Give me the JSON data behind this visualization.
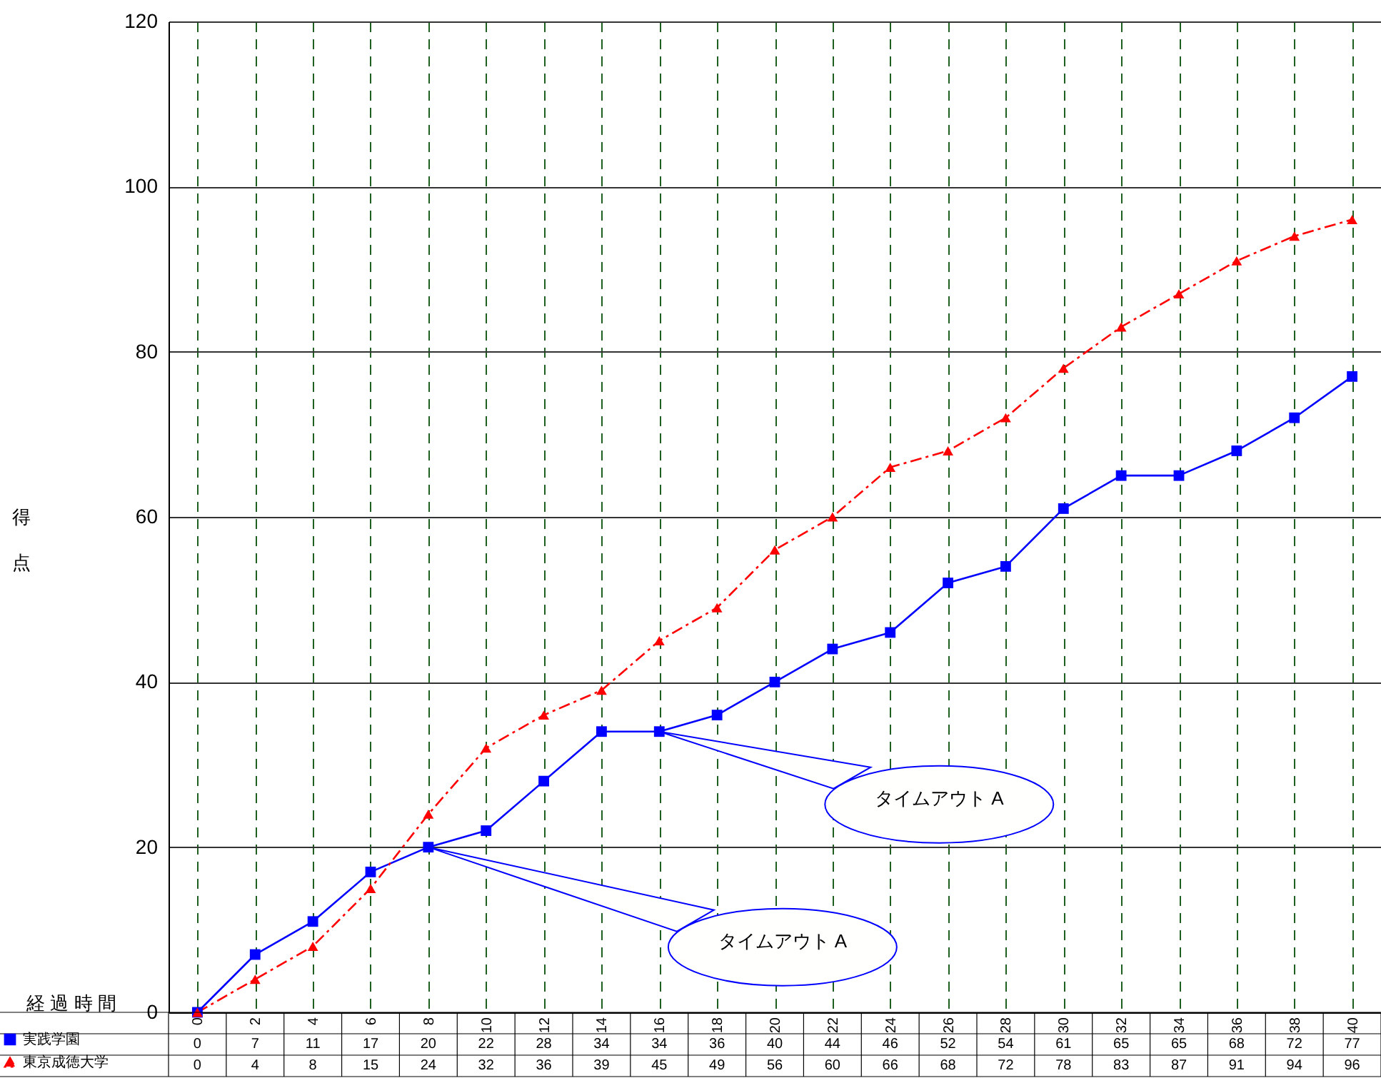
{
  "chart_data": {
    "type": "line",
    "xlabel": "経過時間",
    "ylabel": "得点",
    "categories": [
      "0",
      "2",
      "4",
      "6",
      "8",
      "10",
      "12",
      "14",
      "16",
      "18",
      "20",
      "22",
      "24",
      "26",
      "28",
      "30",
      "32",
      "34",
      "36",
      "38",
      "40"
    ],
    "series": [
      {
        "name": "実践学園",
        "color": "#0000ff",
        "marker": "square",
        "line_style": "solid",
        "values": [
          0,
          7,
          11,
          17,
          20,
          22,
          28,
          34,
          34,
          36,
          40,
          44,
          46,
          52,
          54,
          61,
          65,
          65,
          68,
          72,
          77
        ]
      },
      {
        "name": "東京成徳大学",
        "color": "#ff0000",
        "marker": "triangle",
        "line_style": "dashed",
        "values": [
          0,
          4,
          8,
          15,
          24,
          32,
          36,
          39,
          45,
          49,
          56,
          60,
          66,
          68,
          72,
          78,
          83,
          87,
          91,
          94,
          96
        ]
      }
    ],
    "ylim": [
      0,
      120
    ],
    "yticks": [
      0,
      20,
      40,
      60,
      80,
      100,
      120
    ],
    "grid": true,
    "legend": "bottom left",
    "data_labels": true,
    "annotations": [
      {
        "text": "タイムアウト A",
        "x": "8",
        "y": 20
      },
      {
        "text": "タイムアウト A",
        "x": "16",
        "y": 34
      }
    ]
  }
}
